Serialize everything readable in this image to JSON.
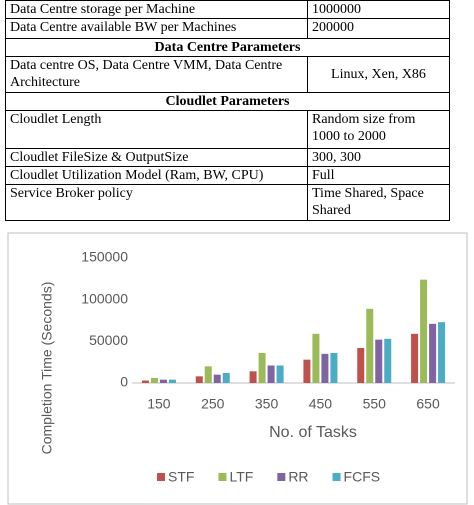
{
  "table": {
    "rows": [
      [
        "Data Centre storage per Machine",
        "1000000"
      ],
      [
        "Data Centre available BW per Machines",
        "200000"
      ],
      [
        "Data Centre Parameters"
      ],
      [
        "Data centre OS,  Data Centre VMM, Data Centre Architecture",
        "Linux, Xen, X86"
      ],
      [
        "Cloudlet Parameters"
      ],
      [
        "Cloudlet Length",
        "Random size from 1000 to 2000"
      ],
      [
        "Cloudlet FileSize & OutputSize",
        "300, 300"
      ],
      [
        "Cloudlet Utilization Model (Ram, BW, CPU)",
        "Full"
      ],
      [
        "Service Broker policy",
        "Time Shared, Space Shared"
      ]
    ]
  },
  "chart_data": {
    "type": "bar",
    "x_label": "No. of Tasks",
    "y_label": "Completion Time (Seconds)",
    "categories": [
      "150",
      "250",
      "350",
      "450",
      "550",
      "650"
    ],
    "series": [
      {
        "name": "STF",
        "color": "#c0504d",
        "values": [
          3000,
          8000,
          14000,
          28000,
          42000,
          59000
        ]
      },
      {
        "name": "LTF",
        "color": "#9bbb59",
        "values": [
          6000,
          20000,
          36000,
          59000,
          89000,
          124000
        ]
      },
      {
        "name": "RR",
        "color": "#8064a2",
        "values": [
          4000,
          10000,
          21000,
          35000,
          52000,
          71000
        ]
      },
      {
        "name": "FCFS",
        "color": "#4bacc6",
        "values": [
          4000,
          12000,
          21000,
          36000,
          53000,
          73000
        ]
      }
    ],
    "ylim": [
      0,
      150000
    ],
    "yticks": [
      0,
      50000,
      100000,
      150000
    ],
    "grid": false,
    "legend": "bottom"
  }
}
